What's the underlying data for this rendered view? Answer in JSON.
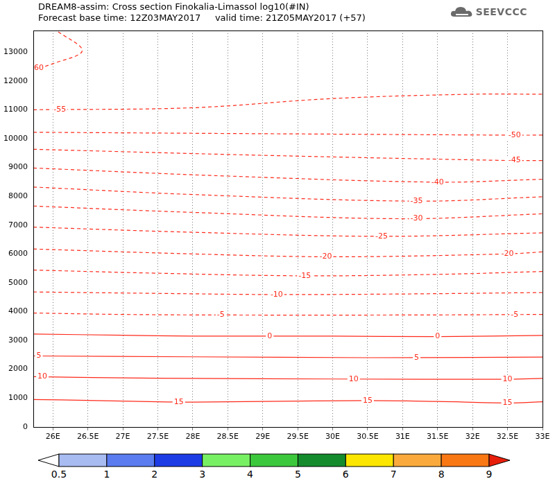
{
  "chart_data": {
    "type": "line",
    "title": "DREAM8-assim: Cross section Finokalia-Limassol log10(#IN)",
    "subtitle": "Forecast base time: 12Z03MAY2017     valid time: 21Z05MAY2017 (+57)",
    "logo": "SEEVCCC",
    "xlim": [
      25.72,
      33
    ],
    "xticks": [
      {
        "value": 26,
        "label": "26E"
      },
      {
        "value": 26.5,
        "label": "26.5E"
      },
      {
        "value": 27,
        "label": "27E"
      },
      {
        "value": 27.5,
        "label": "27.5E"
      },
      {
        "value": 28,
        "label": "28E"
      },
      {
        "value": 28.5,
        "label": "28.5E"
      },
      {
        "value": 29,
        "label": "29E"
      },
      {
        "value": 29.5,
        "label": "29.5E"
      },
      {
        "value": 30,
        "label": "30E"
      },
      {
        "value": 30.5,
        "label": "30.5E"
      },
      {
        "value": 31,
        "label": "31E"
      },
      {
        "value": 31.5,
        "label": "31.5E"
      },
      {
        "value": 32,
        "label": "32E"
      },
      {
        "value": 32.5,
        "label": "32.5E"
      },
      {
        "value": 33,
        "label": "33E"
      }
    ],
    "ylim": [
      0,
      13750
    ],
    "yticks": [
      0,
      1000,
      2000,
      3000,
      4000,
      5000,
      6000,
      7000,
      8000,
      9000,
      10000,
      11000,
      12000,
      13000
    ],
    "grid": true,
    "color": "#ff2a1a",
    "series": [
      {
        "name": "15",
        "line_style": "solid",
        "x": [
          25.72,
          26.5,
          27.5,
          28,
          29,
          30.5,
          31.5,
          32.5,
          33
        ],
        "values": [
          950,
          920,
          870,
          860,
          880,
          910,
          880,
          830,
          870
        ],
        "label_x": [
          27.8,
          30.5,
          32.5
        ]
      },
      {
        "name": "10",
        "line_style": "solid",
        "x": [
          25.72,
          27,
          28,
          30,
          32.5,
          33
        ],
        "values": [
          1740,
          1700,
          1680,
          1660,
          1650,
          1680
        ],
        "label_x": [
          25.85,
          30.3,
          32.5
        ]
      },
      {
        "name": "5",
        "line_style": "solid",
        "x": [
          25.72,
          28,
          30.5,
          32,
          33
        ],
        "values": [
          2460,
          2430,
          2400,
          2410,
          2420
        ],
        "label_x": [
          25.8,
          31.2
        ]
      },
      {
        "name": "0",
        "line_style": "solid",
        "x": [
          25.72,
          27,
          28,
          30,
          31.5,
          33
        ],
        "values": [
          3220,
          3180,
          3150,
          3150,
          3130,
          3170
        ],
        "label_x": [
          29.1,
          31.5
        ]
      },
      {
        "name": "-5",
        "line_style": "dashed",
        "x": [
          25.72,
          27,
          28.5,
          31,
          33
        ],
        "values": [
          3950,
          3900,
          3880,
          3880,
          3900
        ],
        "label_x": [
          28.4,
          32.6
        ]
      },
      {
        "name": "-10",
        "line_style": "dashed",
        "x": [
          25.72,
          27.5,
          29.2,
          31,
          33
        ],
        "values": [
          4680,
          4630,
          4590,
          4610,
          4660
        ],
        "label_x": [
          29.2
        ]
      },
      {
        "name": "-15",
        "line_style": "dashed",
        "x": [
          25.72,
          27.5,
          29.6,
          31.5,
          33
        ],
        "values": [
          5440,
          5330,
          5240,
          5290,
          5390
        ],
        "label_x": [
          29.6
        ]
      },
      {
        "name": "-20",
        "line_style": "dashed",
        "x": [
          25.72,
          28,
          30,
          32.5,
          33
        ],
        "values": [
          6170,
          6000,
          5900,
          6000,
          6070
        ],
        "label_x": [
          29.9,
          32.5
        ]
      },
      {
        "name": "-25",
        "line_style": "dashed",
        "x": [
          25.72,
          28,
          30.7,
          33
        ],
        "values": [
          6930,
          6750,
          6610,
          6730
        ],
        "label_x": [
          30.7
        ]
      },
      {
        "name": "-30",
        "line_style": "dashed",
        "x": [
          25.72,
          28,
          31,
          33
        ],
        "values": [
          7660,
          7440,
          7220,
          7390
        ],
        "label_x": [
          31.2
        ]
      },
      {
        "name": "-35",
        "line_style": "dashed",
        "x": [
          25.72,
          28,
          31.2,
          33
        ],
        "values": [
          8320,
          8060,
          7830,
          7980
        ],
        "label_x": [
          31.2
        ]
      },
      {
        "name": "-40",
        "line_style": "dashed",
        "x": [
          25.72,
          28.5,
          31.5,
          33
        ],
        "values": [
          8980,
          8700,
          8490,
          8590
        ],
        "label_x": [
          31.5
        ]
      },
      {
        "name": "-45",
        "line_style": "dashed",
        "x": [
          25.72,
          29,
          32.5,
          33
        ],
        "values": [
          9630,
          9420,
          9240,
          9240
        ],
        "label_x": [
          32.6
        ]
      },
      {
        "name": "-50",
        "line_style": "dashed",
        "x": [
          25.72,
          29,
          32.5,
          33
        ],
        "values": [
          10220,
          10170,
          10120,
          10120
        ],
        "label_x": [
          32.6
        ]
      },
      {
        "name": "-55",
        "line_style": "dashed",
        "x": [
          25.72,
          28,
          30,
          32,
          33
        ],
        "values": [
          11000,
          11070,
          11390,
          11540,
          11540
        ],
        "label_x": [
          26.1
        ]
      },
      {
        "name": "60",
        "line_style": "dashed",
        "x": [
          25.72,
          26.0,
          26.42,
          26.05
        ],
        "values": [
          12380,
          12600,
          13050,
          13750
        ],
        "label_x": [
          25.8
        ]
      }
    ],
    "colorbar": {
      "ticks": [
        0.5,
        1,
        2,
        3,
        4,
        5,
        6,
        7,
        8,
        9
      ],
      "colors": [
        "#ffffff",
        "#a8bcf2",
        "#5a7cf0",
        "#1e3ce6",
        "#78f064",
        "#3cc83c",
        "#148c2d",
        "#fae600",
        "#faaa3c",
        "#fa7814",
        "#e61e0a"
      ]
    }
  }
}
